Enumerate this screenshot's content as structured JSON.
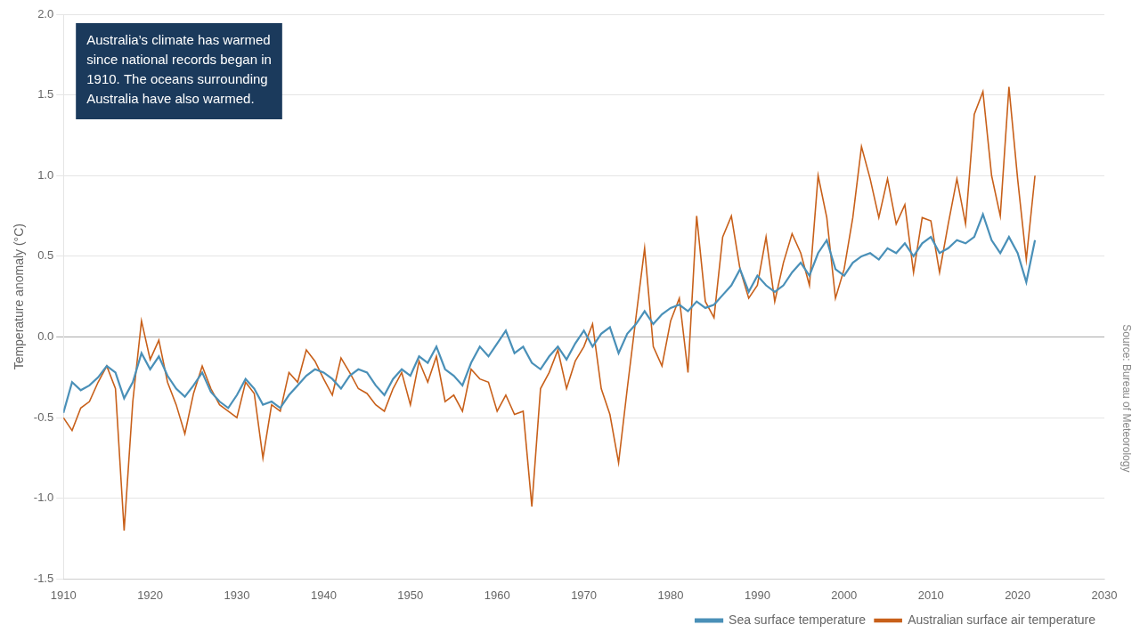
{
  "chart_data": {
    "type": "line",
    "ylabel": "Temperature anomaly (°C)",
    "annotation": "Australia’s climate has warmed\nsince national records began in\n1910. The oceans surrounding\nAustralia have also warmed.",
    "source": "Source: Bureau of Meteorology",
    "x": [
      1910,
      1911,
      1912,
      1913,
      1914,
      1915,
      1916,
      1917,
      1918,
      1919,
      1920,
      1921,
      1922,
      1923,
      1924,
      1925,
      1926,
      1927,
      1928,
      1929,
      1930,
      1931,
      1932,
      1933,
      1934,
      1935,
      1936,
      1937,
      1938,
      1939,
      1940,
      1941,
      1942,
      1943,
      1944,
      1945,
      1946,
      1947,
      1948,
      1949,
      1950,
      1951,
      1952,
      1953,
      1954,
      1955,
      1956,
      1957,
      1958,
      1959,
      1960,
      1961,
      1962,
      1963,
      1964,
      1965,
      1966,
      1967,
      1968,
      1969,
      1970,
      1971,
      1972,
      1973,
      1974,
      1975,
      1976,
      1977,
      1978,
      1979,
      1980,
      1981,
      1982,
      1983,
      1984,
      1985,
      1986,
      1987,
      1988,
      1989,
      1990,
      1991,
      1992,
      1993,
      1994,
      1995,
      1996,
      1997,
      1998,
      1999,
      2000,
      2001,
      2002,
      2003,
      2004,
      2005,
      2006,
      2007,
      2008,
      2009,
      2010,
      2011,
      2012,
      2013,
      2014,
      2015,
      2016,
      2017,
      2018,
      2019,
      2020,
      2021,
      2022
    ],
    "series": [
      {
        "name": "Australian surface air temperature",
        "color": "#c8601a",
        "values": [
          -0.5,
          -0.58,
          -0.44,
          -0.4,
          -0.28,
          -0.18,
          -0.32,
          -1.2,
          -0.4,
          0.1,
          -0.14,
          -0.02,
          -0.28,
          -0.42,
          -0.6,
          -0.35,
          -0.18,
          -0.32,
          -0.42,
          -0.46,
          -0.5,
          -0.28,
          -0.35,
          -0.75,
          -0.42,
          -0.46,
          -0.22,
          -0.28,
          -0.08,
          -0.15,
          -0.26,
          -0.36,
          -0.13,
          -0.22,
          -0.32,
          -0.35,
          -0.42,
          -0.46,
          -0.32,
          -0.22,
          -0.42,
          -0.15,
          -0.28,
          -0.12,
          -0.4,
          -0.36,
          -0.46,
          -0.2,
          -0.26,
          -0.28,
          -0.46,
          -0.36,
          -0.48,
          -0.46,
          -1.05,
          -0.32,
          -0.22,
          -0.08,
          -0.32,
          -0.15,
          -0.06,
          0.08,
          -0.32,
          -0.48,
          -0.78,
          -0.32,
          0.12,
          0.55,
          -0.06,
          -0.18,
          0.1,
          0.24,
          -0.22,
          0.75,
          0.22,
          0.12,
          0.62,
          0.75,
          0.42,
          0.24,
          0.32,
          0.62,
          0.22,
          0.46,
          0.64,
          0.52,
          0.32,
          1.0,
          0.74,
          0.24,
          0.42,
          0.74,
          1.18,
          0.98,
          0.74,
          0.98,
          0.7,
          0.82,
          0.4,
          0.74,
          0.72,
          0.4,
          0.7,
          0.98,
          0.7,
          1.38,
          1.52,
          1.0,
          0.75,
          1.55,
          0.98,
          0.48,
          1.0
        ]
      },
      {
        "name": "Sea surface temperature",
        "color": "#4a90b8",
        "values": [
          -0.47,
          -0.28,
          -0.33,
          -0.3,
          -0.25,
          -0.18,
          -0.22,
          -0.38,
          -0.28,
          -0.1,
          -0.2,
          -0.12,
          -0.24,
          -0.32,
          -0.37,
          -0.3,
          -0.22,
          -0.34,
          -0.4,
          -0.44,
          -0.36,
          -0.26,
          -0.32,
          -0.42,
          -0.4,
          -0.44,
          -0.36,
          -0.3,
          -0.24,
          -0.2,
          -0.22,
          -0.26,
          -0.32,
          -0.24,
          -0.2,
          -0.22,
          -0.3,
          -0.36,
          -0.26,
          -0.2,
          -0.24,
          -0.12,
          -0.16,
          -0.06,
          -0.2,
          -0.24,
          -0.3,
          -0.16,
          -0.06,
          -0.12,
          -0.04,
          0.04,
          -0.1,
          -0.06,
          -0.16,
          -0.2,
          -0.12,
          -0.06,
          -0.14,
          -0.04,
          0.04,
          -0.06,
          0.02,
          0.06,
          -0.1,
          0.02,
          0.08,
          0.16,
          0.08,
          0.14,
          0.18,
          0.2,
          0.16,
          0.22,
          0.18,
          0.2,
          0.26,
          0.32,
          0.42,
          0.28,
          0.38,
          0.32,
          0.28,
          0.32,
          0.4,
          0.46,
          0.38,
          0.52,
          0.6,
          0.42,
          0.38,
          0.46,
          0.5,
          0.52,
          0.48,
          0.55,
          0.52,
          0.58,
          0.5,
          0.58,
          0.62,
          0.52,
          0.55,
          0.6,
          0.58,
          0.62,
          0.76,
          0.6,
          0.52,
          0.62,
          0.52,
          0.34,
          0.6
        ]
      }
    ],
    "xlim": [
      1910,
      2030
    ],
    "ylim": [
      -1.5,
      2.0
    ],
    "xticks": [
      1910,
      1920,
      1930,
      1940,
      1950,
      1960,
      1970,
      1980,
      1990,
      2000,
      2010,
      2020,
      2030
    ],
    "yticks": [
      -1.5,
      {
        "value": -1.0,
        "label": "-1.0"
      },
      -0.5,
      {
        "value": 0.0,
        "label": "0.0"
      },
      0.5,
      {
        "value": 1.0,
        "label": "1.0"
      },
      1.5,
      {
        "value": 2.0,
        "label": "2.0"
      }
    ],
    "grid": "y",
    "legend": "lower right"
  }
}
